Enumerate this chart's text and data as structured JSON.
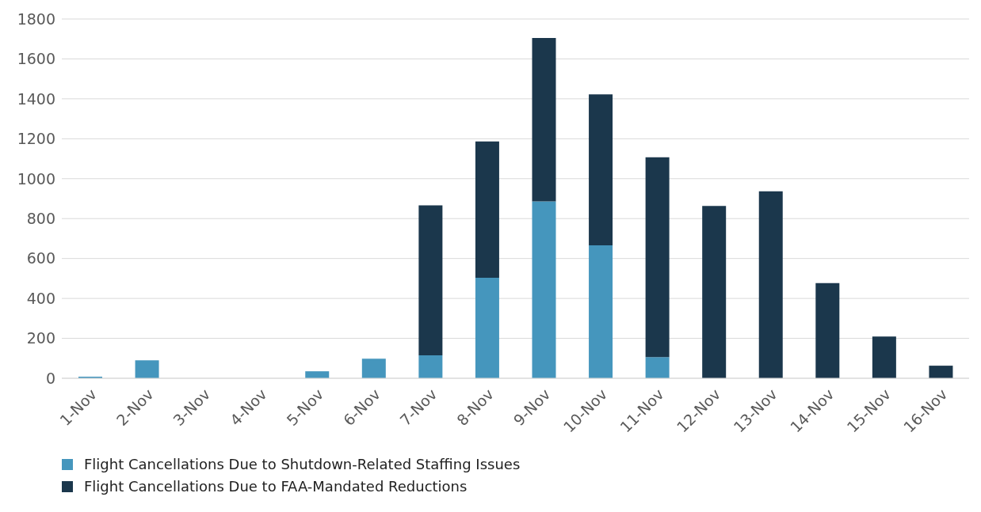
{
  "chart_data": {
    "type": "bar",
    "stacked": true,
    "categories": [
      "1-Nov",
      "2-Nov",
      "3-Nov",
      "4-Nov",
      "5-Nov",
      "6-Nov",
      "7-Nov",
      "8-Nov",
      "9-Nov",
      "10-Nov",
      "11-Nov",
      "12-Nov",
      "13-Nov",
      "14-Nov",
      "15-Nov",
      "16-Nov"
    ],
    "series": [
      {
        "name": "Flight Cancellations Due to Shutdown-Related Staffing Issues",
        "color": "#4596bd",
        "values": [
          8,
          90,
          0,
          0,
          35,
          98,
          115,
          504,
          886,
          666,
          106,
          0,
          0,
          0,
          0,
          0
        ]
      },
      {
        "name": "Flight Cancellations Due to FAA-Mandated Reductions",
        "color": "#1b374c",
        "values": [
          0,
          0,
          0,
          0,
          0,
          0,
          751,
          682,
          819,
          756,
          1001,
          863,
          937,
          477,
          209,
          63
        ]
      }
    ],
    "ylim": [
      0,
      1800
    ],
    "yticks": [
      0,
      200,
      400,
      600,
      800,
      1000,
      1200,
      1400,
      1600,
      1800
    ],
    "grid": "y",
    "legend": "bottom left"
  }
}
